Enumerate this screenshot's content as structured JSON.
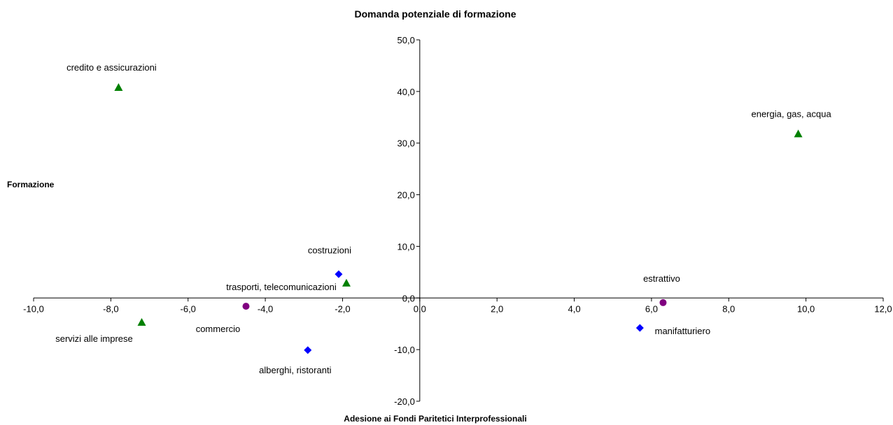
{
  "chart_data": {
    "type": "scatter",
    "title": "Domanda potenziale di formazione",
    "xlabel": "Adesione ai Fondi Paritetici Interprofessionali",
    "ylabel": "Formazione",
    "xlim": [
      -10,
      12
    ],
    "ylim": [
      -20,
      50
    ],
    "xticks": [
      -10,
      -8,
      -6,
      -4,
      -2,
      0,
      2,
      4,
      6,
      8,
      10,
      12
    ],
    "yticks": [
      -20,
      -10,
      0,
      10,
      20,
      30,
      40,
      50
    ],
    "xtick_labels": [
      "-10,0",
      "-8,0",
      "-6,0",
      "-4,0",
      "-2,0",
      "0,0",
      "2,0",
      "4,0",
      "6,0",
      "8,0",
      "10,0",
      "12,0"
    ],
    "ytick_labels": [
      "-20,0",
      "-10,0",
      "0,0",
      "10,0",
      "20,0",
      "30,0",
      "40,0",
      "50,0"
    ],
    "grid": false,
    "legend": "none",
    "points": [
      {
        "label": "credito e assicurazioni",
        "x": -7.8,
        "y": 40.8,
        "marker": "triangle",
        "color": "#008000"
      },
      {
        "label": "energia, gas, acqua",
        "x": 9.8,
        "y": 31.8,
        "marker": "triangle",
        "color": "#008000"
      },
      {
        "label": "costruzioni",
        "x": -2.1,
        "y": 4.6,
        "marker": "diamond",
        "color": "#0000ff"
      },
      {
        "label": "trasporti, telecomunicazioni",
        "x": -1.9,
        "y": 2.9,
        "marker": "triangle",
        "color": "#008000"
      },
      {
        "label": "estrattivo",
        "x": 6.3,
        "y": -0.9,
        "marker": "circle",
        "color": "#800080"
      },
      {
        "label": "commercio",
        "x": -4.5,
        "y": -1.6,
        "marker": "circle",
        "color": "#800080"
      },
      {
        "label": "servizi alle imprese",
        "x": -7.2,
        "y": -4.7,
        "marker": "triangle",
        "color": "#008000"
      },
      {
        "label": "manifatturiero",
        "x": 5.7,
        "y": -5.8,
        "marker": "diamond",
        "color": "#0000ff"
      },
      {
        "label": "alberghi, ristoranti",
        "x": -2.9,
        "y": -10.1,
        "marker": "diamond",
        "color": "#0000ff"
      }
    ]
  }
}
